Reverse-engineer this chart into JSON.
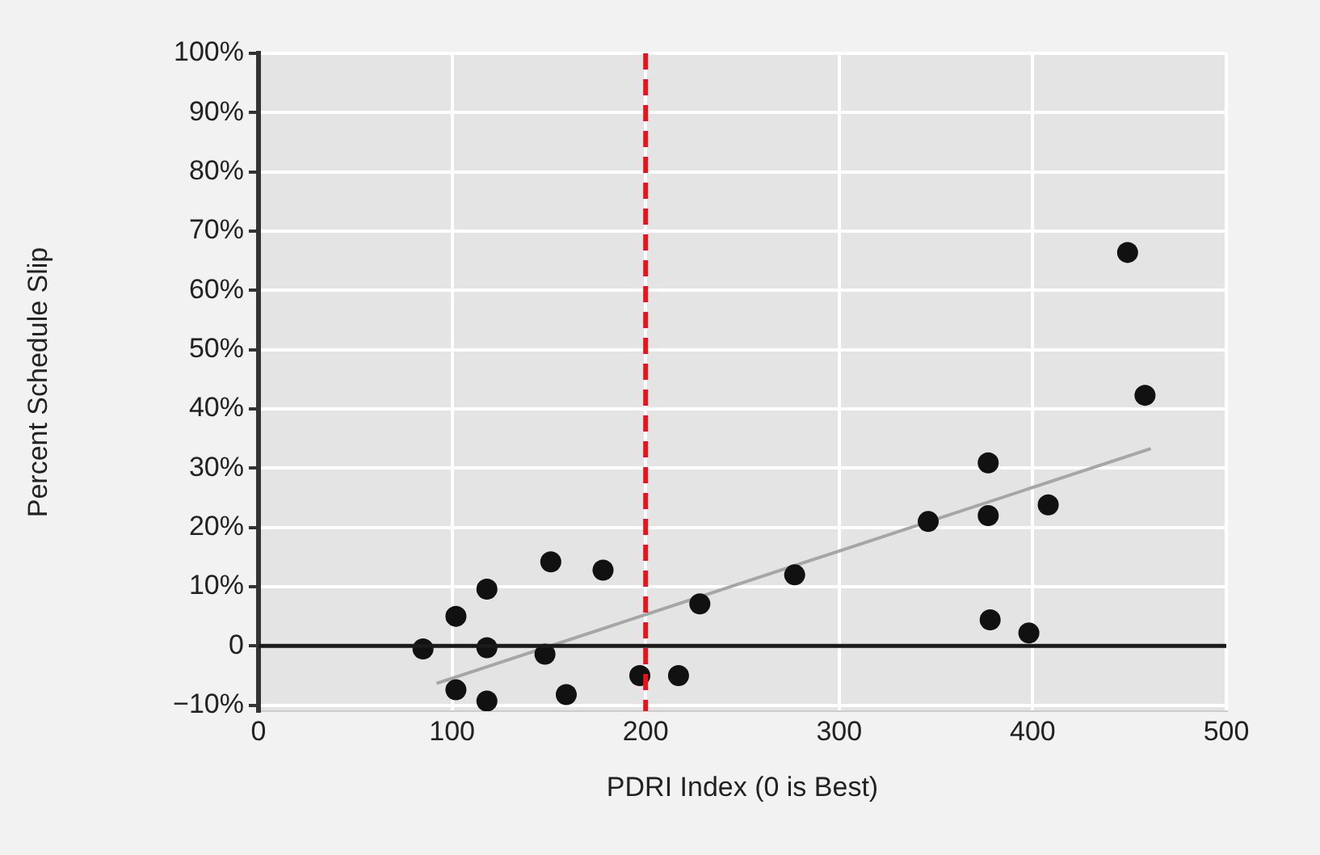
{
  "chart_data": {
    "type": "scatter",
    "xlabel": "PDRI Index (0 is Best)",
    "ylabel": "Percent Schedule Slip",
    "series": [
      {
        "color": "#111111",
        "x": [
          85,
          102,
          102,
          118,
          118,
          118,
          151,
          148,
          159,
          178,
          197,
          217,
          228,
          277,
          346,
          377,
          377,
          378,
          398,
          408,
          449,
          458
        ],
        "values": [
          -0.5,
          5,
          -7.4,
          9.6,
          -0.3,
          -9.3,
          14.2,
          -1.4,
          -8.2,
          12.8,
          -5,
          -5,
          7.1,
          12,
          21,
          30.9,
          22,
          4.4,
          2.2,
          23.8,
          66.4,
          42.3
        ]
      },
      {
        "type": "line",
        "color": "#a6a6a6",
        "x": [
          92,
          461
        ],
        "values": [
          -6.3,
          33.3
        ],
        "marker": "none"
      }
    ],
    "xlim": [
      0,
      500
    ],
    "xticks": [
      0,
      100,
      200,
      300,
      400,
      500
    ],
    "ylim": [
      -11,
      100
    ],
    "yticks": [
      {
        "value": -10,
        "label": "−10%"
      },
      0,
      {
        "value": 10,
        "label": "10%"
      },
      {
        "value": 20,
        "label": "20%"
      },
      {
        "value": 30,
        "label": "30%"
      },
      {
        "value": 40,
        "label": "40%"
      },
      {
        "value": 50,
        "label": "50%"
      },
      {
        "value": 60,
        "label": "60%"
      },
      {
        "value": 70,
        "label": "70%"
      },
      {
        "value": 80,
        "label": "80%"
      },
      {
        "value": 90,
        "label": "90%"
      },
      {
        "value": 100,
        "label": "100%"
      }
    ],
    "ref_lines": [
      {
        "axis": "x",
        "value": 200,
        "color": "#e8141b",
        "line_style": "dashed"
      },
      {
        "axis": "y",
        "value": 0,
        "color": "#1a1a1a",
        "line_style": "solid"
      }
    ],
    "grid": true,
    "legend": false,
    "marker": "circle"
  }
}
